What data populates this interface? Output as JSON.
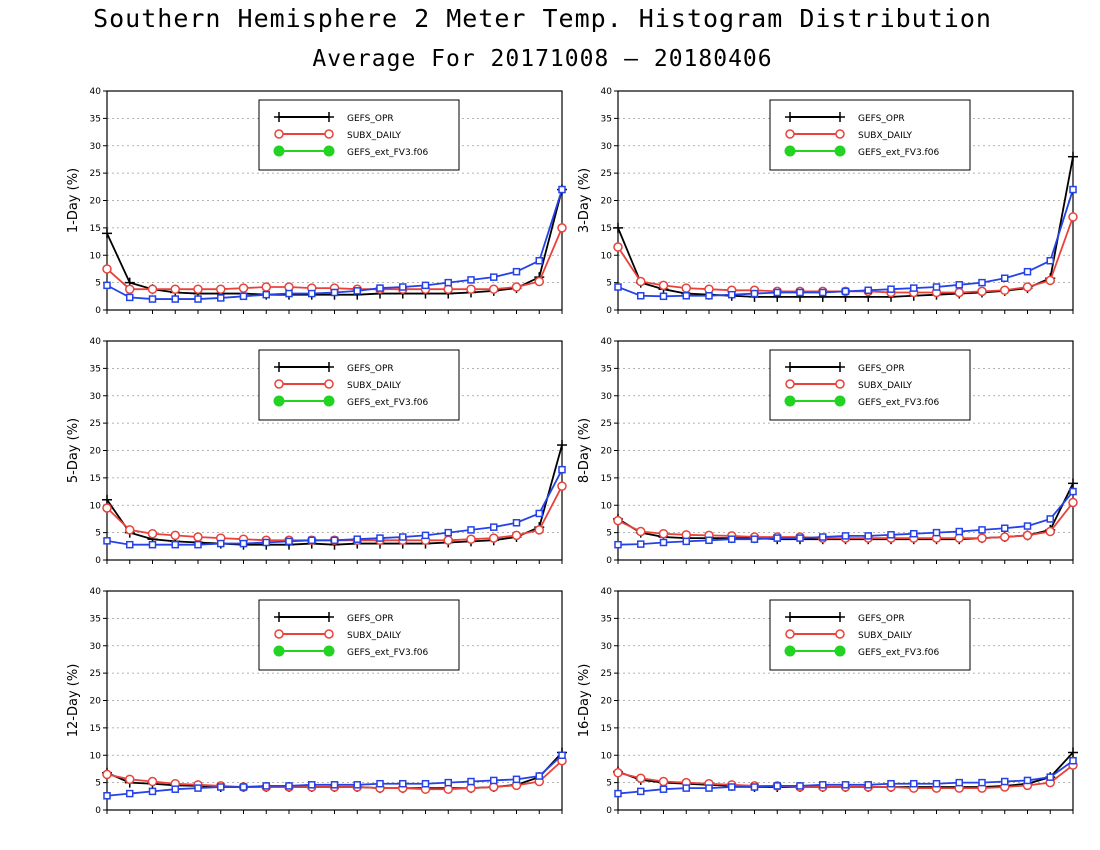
{
  "title": "Southern Hemisphere 2 Meter Temp. Histogram Distribution",
  "subtitle": "Average For 20171008 – 20180406",
  "colors": {
    "GEFS_OPR": "#000000",
    "SUBX_DAILY": "#e8423b",
    "GEFS_ext_FV3.f06": "#22d322",
    "blue_series": "#2442e6"
  },
  "chart_data": [
    {
      "type": "line",
      "ylabel": "1-Day (%)",
      "ylim": [
        0,
        40
      ],
      "yticks": [
        0,
        5,
        10,
        15,
        20,
        25,
        30,
        35,
        40
      ],
      "grid": true,
      "legend_position": "top-center",
      "legend": [
        "GEFS_OPR",
        "SUBX_DAILY",
        "GEFS_ext_FV3.f06"
      ],
      "x": [
        1,
        2,
        3,
        4,
        5,
        6,
        7,
        8,
        9,
        10,
        11,
        12,
        13,
        14,
        15,
        16,
        17,
        18,
        19,
        20,
        21
      ],
      "series": [
        {
          "name": "GEFS_OPR",
          "marker": "plus",
          "values": [
            14,
            5,
            3.8,
            3.2,
            3,
            3,
            3,
            2.8,
            2.8,
            2.8,
            2.8,
            2.8,
            3,
            3,
            3,
            3,
            3.2,
            3.5,
            4,
            6,
            22
          ]
        },
        {
          "name": "SUBX_DAILY",
          "marker": "open-circle",
          "values": [
            7.5,
            3.8,
            3.8,
            3.8,
            3.8,
            3.8,
            4,
            4.2,
            4.2,
            4,
            4,
            3.8,
            3.8,
            3.8,
            3.8,
            3.8,
            3.8,
            3.8,
            4.2,
            5.2,
            15
          ]
        },
        {
          "marker": "open-square",
          "values": [
            4.5,
            2.3,
            2,
            2,
            2,
            2.2,
            2.5,
            2.8,
            3,
            3,
            3.2,
            3.5,
            4,
            4.2,
            4.5,
            5,
            5.5,
            6,
            7,
            9,
            22
          ]
        }
      ]
    },
    {
      "type": "line",
      "ylabel": "3-Day (%)",
      "ylim": [
        0,
        40
      ],
      "yticks": [
        0,
        5,
        10,
        15,
        20,
        25,
        30,
        35,
        40
      ],
      "grid": true,
      "legend_position": "top-center",
      "legend": [
        "GEFS_OPR",
        "SUBX_DAILY",
        "GEFS_ext_FV3.f06"
      ],
      "x": [
        1,
        2,
        3,
        4,
        5,
        6,
        7,
        8,
        9,
        10,
        11,
        12,
        13,
        14,
        15,
        16,
        17,
        18,
        19,
        20,
        21
      ],
      "series": [
        {
          "name": "GEFS_OPR",
          "marker": "plus",
          "values": [
            15,
            5,
            3.8,
            3,
            2.8,
            2.6,
            2.4,
            2.4,
            2.4,
            2.4,
            2.4,
            2.4,
            2.4,
            2.6,
            2.8,
            3,
            3.2,
            3.5,
            4,
            5.8,
            28
          ]
        },
        {
          "name": "SUBX_DAILY",
          "marker": "open-circle",
          "values": [
            11.5,
            5.2,
            4.5,
            4,
            3.8,
            3.6,
            3.6,
            3.4,
            3.4,
            3.4,
            3.4,
            3.4,
            3.2,
            3.2,
            3.2,
            3.2,
            3.4,
            3.6,
            4.2,
            5.4,
            17
          ]
        },
        {
          "marker": "open-square",
          "values": [
            4.2,
            2.6,
            2.5,
            2.6,
            2.6,
            2.8,
            3,
            3.2,
            3.2,
            3.2,
            3.4,
            3.6,
            3.8,
            4,
            4.2,
            4.6,
            5,
            5.8,
            7,
            9,
            22
          ]
        }
      ]
    },
    {
      "type": "line",
      "ylabel": "5-Day (%)",
      "ylim": [
        0,
        40
      ],
      "yticks": [
        0,
        5,
        10,
        15,
        20,
        25,
        30,
        35,
        40
      ],
      "grid": true,
      "legend_position": "top-center",
      "legend": [
        "GEFS_OPR",
        "SUBX_DAILY",
        "GEFS_ext_FV3.f06"
      ],
      "x": [
        1,
        2,
        3,
        4,
        5,
        6,
        7,
        8,
        9,
        10,
        11,
        12,
        13,
        14,
        15,
        16,
        17,
        18,
        19,
        20,
        21
      ],
      "series": [
        {
          "name": "GEFS_OPR",
          "marker": "plus",
          "values": [
            11,
            5,
            3.8,
            3.4,
            3.2,
            3,
            2.8,
            2.8,
            2.8,
            3,
            2.8,
            3,
            3,
            3,
            3,
            3.2,
            3.4,
            3.6,
            4.2,
            6,
            21
          ]
        },
        {
          "name": "SUBX_DAILY",
          "marker": "open-circle",
          "values": [
            9.5,
            5.5,
            4.8,
            4.5,
            4.2,
            4,
            3.8,
            3.6,
            3.6,
            3.6,
            3.6,
            3.6,
            3.6,
            3.6,
            3.6,
            3.6,
            3.8,
            4,
            4.5,
            5.5,
            13.5
          ]
        },
        {
          "marker": "open-square",
          "values": [
            3.5,
            2.8,
            2.8,
            2.8,
            2.8,
            3,
            3,
            3.2,
            3.4,
            3.6,
            3.6,
            3.8,
            4,
            4.2,
            4.5,
            5,
            5.5,
            6,
            6.8,
            8.5,
            16.5
          ]
        }
      ]
    },
    {
      "type": "line",
      "ylabel": "8-Day (%)",
      "ylim": [
        0,
        40
      ],
      "yticks": [
        0,
        5,
        10,
        15,
        20,
        25,
        30,
        35,
        40
      ],
      "grid": true,
      "legend_position": "top-center",
      "legend": [
        "GEFS_OPR",
        "SUBX_DAILY",
        "GEFS_ext_FV3.f06"
      ],
      "x": [
        1,
        2,
        3,
        4,
        5,
        6,
        7,
        8,
        9,
        10,
        11,
        12,
        13,
        14,
        15,
        16,
        17,
        18,
        19,
        20,
        21
      ],
      "series": [
        {
          "name": "GEFS_OPR",
          "marker": "plus",
          "values": [
            7.5,
            5,
            4.2,
            4,
            4,
            4,
            4,
            3.8,
            3.8,
            3.8,
            3.8,
            3.8,
            3.8,
            3.8,
            3.8,
            3.8,
            4,
            4.2,
            4.5,
            5.5,
            14
          ]
        },
        {
          "name": "SUBX_DAILY",
          "marker": "open-circle",
          "values": [
            7.2,
            5.2,
            4.8,
            4.6,
            4.5,
            4.4,
            4.2,
            4.2,
            4.2,
            4,
            4,
            4,
            4,
            4,
            4,
            4,
            4,
            4.2,
            4.5,
            5.2,
            10.5
          ]
        },
        {
          "marker": "open-square",
          "values": [
            2.8,
            2.9,
            3.2,
            3.4,
            3.6,
            3.8,
            3.8,
            4,
            4,
            4.2,
            4.4,
            4.4,
            4.6,
            4.8,
            5,
            5.2,
            5.5,
            5.8,
            6.2,
            7.5,
            12.5
          ]
        }
      ]
    },
    {
      "type": "line",
      "ylabel": "12-Day (%)",
      "ylim": [
        0,
        40
      ],
      "yticks": [
        0,
        5,
        10,
        15,
        20,
        25,
        30,
        35,
        40
      ],
      "grid": true,
      "legend_position": "top-center",
      "legend": [
        "GEFS_OPR",
        "SUBX_DAILY",
        "GEFS_ext_FV3.f06"
      ],
      "x": [
        1,
        2,
        3,
        4,
        5,
        6,
        7,
        8,
        9,
        10,
        11,
        12,
        13,
        14,
        15,
        16,
        17,
        18,
        19,
        20,
        21
      ],
      "series": [
        {
          "name": "GEFS_OPR",
          "marker": "plus",
          "values": [
            6.8,
            5,
            4.8,
            4.5,
            4.4,
            4.2,
            4.2,
            4.2,
            4.2,
            4.2,
            4.2,
            4.2,
            4,
            4,
            4,
            4,
            4,
            4.2,
            4.6,
            6,
            10.5
          ]
        },
        {
          "name": "SUBX_DAILY",
          "marker": "open-circle",
          "values": [
            6.5,
            5.6,
            5.2,
            4.8,
            4.6,
            4.4,
            4.2,
            4.2,
            4.2,
            4.2,
            4.2,
            4.2,
            4,
            4,
            3.8,
            3.8,
            4,
            4.2,
            4.5,
            5.2,
            9
          ]
        },
        {
          "marker": "open-square",
          "values": [
            2.6,
            3,
            3.4,
            3.8,
            4,
            4.2,
            4.2,
            4.4,
            4.4,
            4.6,
            4.6,
            4.6,
            4.8,
            4.8,
            4.8,
            5,
            5.2,
            5.4,
            5.6,
            6.2,
            10
          ]
        }
      ]
    },
    {
      "type": "line",
      "ylabel": "16-Day (%)",
      "ylim": [
        0,
        40
      ],
      "yticks": [
        0,
        5,
        10,
        15,
        20,
        25,
        30,
        35,
        40
      ],
      "grid": true,
      "legend_position": "top-center",
      "legend": [
        "GEFS_OPR",
        "SUBX_DAILY",
        "GEFS_ext_FV3.f06"
      ],
      "x": [
        1,
        2,
        3,
        4,
        5,
        6,
        7,
        8,
        9,
        10,
        11,
        12,
        13,
        14,
        15,
        16,
        17,
        18,
        19,
        20,
        21
      ],
      "series": [
        {
          "name": "GEFS_OPR",
          "marker": "plus",
          "values": [
            7,
            5.5,
            5,
            4.8,
            4.6,
            4.4,
            4.2,
            4.2,
            4.2,
            4.2,
            4.2,
            4.2,
            4.2,
            4.2,
            4.2,
            4.2,
            4.2,
            4.4,
            4.8,
            6,
            10.5
          ]
        },
        {
          "name": "SUBX_DAILY",
          "marker": "open-circle",
          "values": [
            6.8,
            5.8,
            5.2,
            5,
            4.8,
            4.6,
            4.4,
            4.4,
            4.2,
            4.2,
            4.2,
            4.2,
            4.2,
            4,
            4,
            4,
            4,
            4.2,
            4.5,
            5,
            8.2
          ]
        },
        {
          "marker": "open-square",
          "values": [
            3,
            3.4,
            3.8,
            4,
            4,
            4.2,
            4.2,
            4.4,
            4.4,
            4.6,
            4.6,
            4.6,
            4.8,
            4.8,
            4.8,
            5,
            5,
            5.2,
            5.4,
            6,
            9
          ]
        }
      ]
    }
  ]
}
